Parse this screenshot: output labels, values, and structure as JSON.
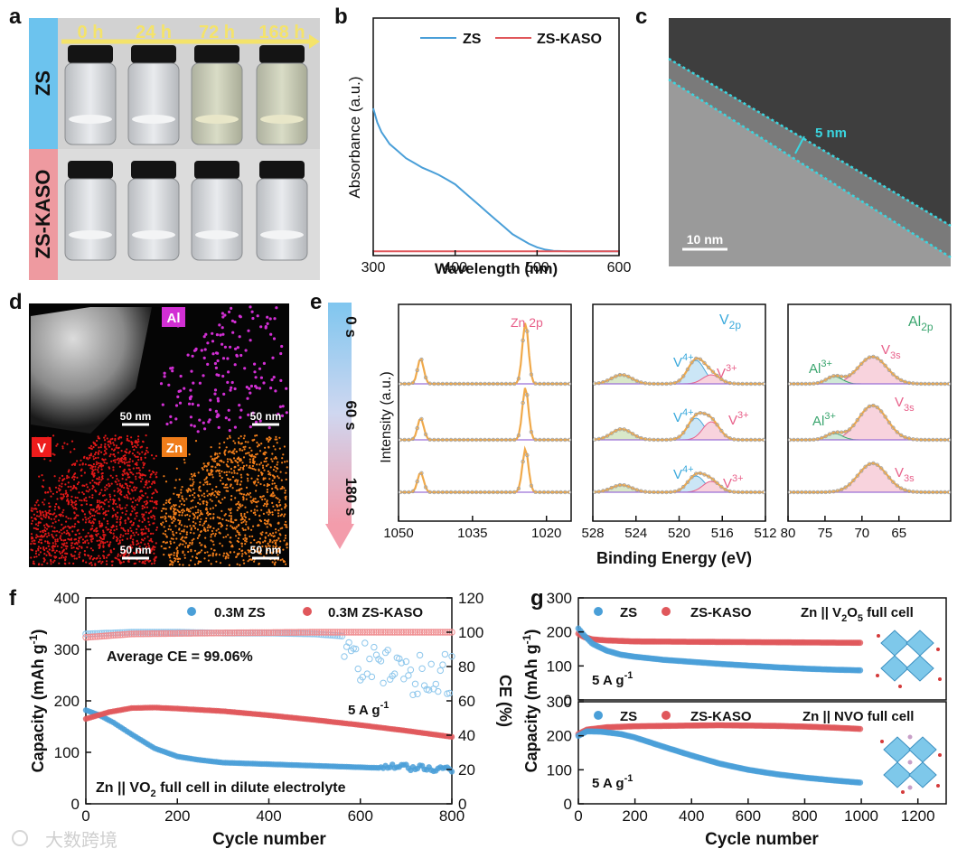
{
  "panel_letters": [
    "a",
    "b",
    "c",
    "d",
    "e",
    "f",
    "g"
  ],
  "panel_a": {
    "times": [
      "0 h",
      "24 h",
      "72 h",
      "168 h"
    ],
    "row_labels": [
      "ZS",
      "ZS-KASO"
    ],
    "colors": {
      "zs_band": "#6cc3ee",
      "kaso_band": "#ee9aa0",
      "arrow": "#f4e36a"
    }
  },
  "panel_b": {
    "xlabel": "Wavelength (nm)",
    "ylabel": "Absorbance (a.u.)",
    "xticks": [
      "300",
      "400",
      "500",
      "600"
    ],
    "legend": [
      "ZS",
      "ZS-KASO"
    ]
  },
  "panel_c": {
    "thickness_label": "5 nm",
    "scale_bar": "10 nm"
  },
  "panel_d": {
    "tiles": [
      {
        "label": "",
        "scale": "50 nm"
      },
      {
        "label": "Al",
        "scale": "50 nm",
        "color": "#d22fd4"
      },
      {
        "label": "V",
        "scale": "50 nm",
        "color": "#ee1c1c"
      },
      {
        "label": "Zn",
        "scale": "50 nm",
        "color": "#f07d1a"
      }
    ]
  },
  "panel_e": {
    "ylabel": "Intensity (a.u.)",
    "xlabel": "Binding Energy (eV)",
    "etch_times": [
      "0 s",
      "60 s",
      "180 s"
    ],
    "sub1": {
      "title": "Zn 2p",
      "xticks": [
        "1050",
        "1035",
        "1020"
      ]
    },
    "sub2": {
      "title_main": "V",
      "title_sub": "2p",
      "v4": "V",
      "v4_sup": "4+",
      "v3": "V",
      "v3_sup": "3+",
      "xticks": [
        "528",
        "524",
        "520",
        "516",
        "512"
      ]
    },
    "sub3": {
      "title_main": "Al",
      "title_sub": "2p",
      "al": "Al",
      "al_sup": "3+",
      "v3s": "V",
      "v3s_sub": "3s",
      "xticks": [
        "80",
        "75",
        "70",
        "65"
      ]
    }
  },
  "panel_f": {
    "xlabel": "Cycle number",
    "ylabel_left": "Capacity (mAh g",
    "ylabel_left_sup": "-1",
    "ylabel_left_end": ")",
    "ylabel_right": "CE (%)",
    "legend": [
      "0.3M ZS",
      "0.3M ZS-KASO"
    ],
    "avg_ce": "Average CE = 99.06%",
    "rate": "5 A g",
    "rate_sup": "-1",
    "cell_pre": "Zn || VO",
    "cell_sub": "2",
    "cell_post": " full cell in dilute electrolyte",
    "xticks": [
      "0",
      "200",
      "400",
      "600",
      "800"
    ],
    "yticks_left": [
      "0",
      "100",
      "200",
      "300",
      "400"
    ],
    "yticks_right": [
      "0",
      "20",
      "40",
      "60",
      "80",
      "100",
      "120"
    ]
  },
  "panel_g": {
    "xlabel": "Cycle number",
    "ylabel": "Capacity (mAh g",
    "ylabel_sup": "-1",
    "ylabel_end": ")",
    "legend": [
      "ZS",
      "ZS-KASO"
    ],
    "top_cell_pre": "Zn || V",
    "top_cell_sub1": "2",
    "top_cell_mid": "O",
    "top_cell_sub2": "5",
    "top_cell_post": " full cell",
    "bottom_cell": "Zn || NVO full cell",
    "rate": "5 A g",
    "rate_sup": "-1",
    "xticks": [
      "0",
      "200",
      "400",
      "600",
      "800",
      "1000",
      "1200"
    ],
    "yticks": [
      "0",
      "100",
      "200",
      "300"
    ]
  },
  "watermark": "大数跨境",
  "chart_data": [
    {
      "type": "line",
      "title": "b",
      "xlabel": "Wavelength (nm)",
      "ylabel": "Absorbance (a.u.)",
      "xlim": [
        300,
        600
      ],
      "ylim": [
        0,
        1
      ],
      "series": [
        {
          "name": "ZS",
          "color": "#4a9fd8",
          "x": [
            300,
            305,
            310,
            320,
            330,
            340,
            350,
            360,
            370,
            380,
            390,
            400,
            410,
            420,
            430,
            440,
            450,
            460,
            470,
            480,
            490,
            500,
            510,
            520,
            540,
            560,
            580,
            600
          ],
          "y": [
            0.62,
            0.56,
            0.52,
            0.47,
            0.44,
            0.41,
            0.39,
            0.37,
            0.355,
            0.34,
            0.32,
            0.3,
            0.27,
            0.24,
            0.21,
            0.18,
            0.15,
            0.12,
            0.09,
            0.07,
            0.05,
            0.035,
            0.025,
            0.02,
            0.018,
            0.018,
            0.018,
            0.018
          ]
        },
        {
          "name": "ZS-KASO",
          "color": "#e0575b",
          "x": [
            300,
            600
          ],
          "y": [
            0.018,
            0.018
          ]
        }
      ]
    },
    {
      "type": "scatter",
      "title": "f",
      "xlabel": "Cycle number",
      "ylabel": "Capacity (mAh g-1)",
      "y2label": "CE (%)",
      "xlim": [
        0,
        800
      ],
      "ylim": [
        0,
        400
      ],
      "y2lim": [
        0,
        120
      ],
      "series": [
        {
          "name": "0.3M ZS capacity",
          "axis": "left",
          "color": "#4a9fd8",
          "x": [
            0,
            30,
            60,
            100,
            150,
            200,
            250,
            300,
            400,
            500,
            600,
            700,
            800
          ],
          "y": [
            182,
            172,
            158,
            135,
            108,
            92,
            85,
            80,
            77,
            74,
            71,
            68,
            65
          ]
        },
        {
          "name": "0.3M ZS-KASO capacity",
          "axis": "left",
          "color": "#e0575b",
          "x": [
            0,
            50,
            100,
            150,
            200,
            300,
            400,
            500,
            600,
            700,
            800
          ],
          "y": [
            165,
            178,
            186,
            187,
            185,
            180,
            172,
            163,
            153,
            142,
            130
          ]
        },
        {
          "name": "0.3M ZS CE",
          "axis": "right",
          "color": "#8ec7ec",
          "x": [
            0,
            100,
            200,
            300,
            400,
            500,
            600,
            650,
            700,
            750,
            800
          ],
          "y": [
            99,
            100,
            100,
            99.5,
            99.5,
            99,
            97,
            95,
            85,
            90,
            88
          ]
        },
        {
          "name": "0.3M ZS-KASO CE",
          "axis": "right",
          "color": "#ef8d90",
          "x": [
            0,
            100,
            200,
            300,
            400,
            500,
            600,
            700,
            800
          ],
          "y": [
            97,
            99,
            99.3,
            99.6,
            99.8,
            100,
            100,
            100,
            100
          ]
        }
      ]
    },
    {
      "type": "scatter",
      "title": "g (Zn || V2O5 full cell)",
      "xlabel": "Cycle number",
      "ylabel": "Capacity (mAh g-1)",
      "xlim": [
        0,
        1300
      ],
      "ylim": [
        0,
        300
      ],
      "series": [
        {
          "name": "ZS",
          "color": "#4a9fd8",
          "x": [
            0,
            20,
            50,
            100,
            150,
            200,
            300,
            400,
            500,
            600,
            700,
            800,
            900,
            1000
          ],
          "y": [
            210,
            190,
            165,
            145,
            133,
            127,
            118,
            112,
            106,
            101,
            96,
            92,
            89,
            87
          ]
        },
        {
          "name": "ZS-KASO",
          "color": "#e0575b",
          "x": [
            0,
            20,
            50,
            100,
            200,
            400,
            600,
            800,
            1000
          ],
          "y": [
            195,
            185,
            178,
            175,
            172,
            171,
            170,
            169,
            168
          ]
        }
      ]
    },
    {
      "type": "scatter",
      "title": "g (Zn || NVO full cell)",
      "xlabel": "Cycle number",
      "ylabel": "Capacity (mAh g-1)",
      "xlim": [
        0,
        1300
      ],
      "ylim": [
        0,
        300
      ],
      "series": [
        {
          "name": "ZS",
          "color": "#4a9fd8",
          "x": [
            0,
            30,
            80,
            150,
            200,
            300,
            400,
            500,
            600,
            700,
            800,
            900,
            1000
          ],
          "y": [
            200,
            213,
            212,
            205,
            195,
            168,
            142,
            118,
            100,
            87,
            77,
            69,
            62
          ]
        },
        {
          "name": "ZS-KASO",
          "color": "#e0575b",
          "x": [
            0,
            30,
            100,
            200,
            300,
            400,
            500,
            600,
            700,
            800,
            900,
            1000
          ],
          "y": [
            205,
            218,
            225,
            228,
            229,
            230,
            231,
            230,
            229,
            227,
            224,
            220
          ]
        }
      ]
    }
  ]
}
